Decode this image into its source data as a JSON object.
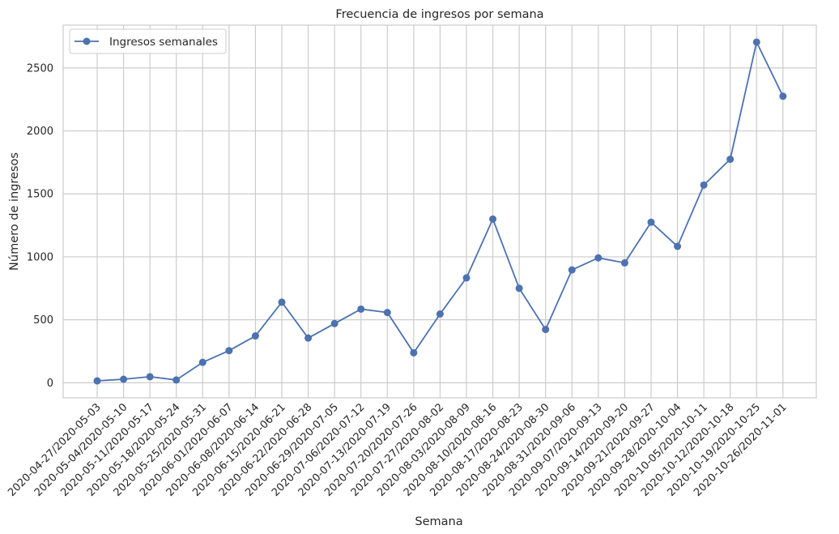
{
  "chart_data": {
    "type": "line",
    "title": "Frecuencia de ingresos por semana",
    "xlabel": "Semana",
    "ylabel": "Número de ingresos",
    "ylim": [
      -120,
      2840
    ],
    "yticks": [
      0,
      500,
      1000,
      1500,
      2000,
      2500
    ],
    "grid": true,
    "legend_position": "top-left",
    "categories": [
      "2020-04-27/2020-05-03",
      "2020-05-04/2020-05-10",
      "2020-05-11/2020-05-17",
      "2020-05-18/2020-05-24",
      "2020-05-25/2020-05-31",
      "2020-06-01/2020-06-07",
      "2020-06-08/2020-06-14",
      "2020-06-15/2020-06-21",
      "2020-06-22/2020-06-28",
      "2020-06-29/2020-07-05",
      "2020-07-06/2020-07-12",
      "2020-07-13/2020-07-19",
      "2020-07-20/2020-07-26",
      "2020-07-27/2020-08-02",
      "2020-08-03/2020-08-09",
      "2020-08-10/2020-08-16",
      "2020-08-17/2020-08-23",
      "2020-08-24/2020-08-30",
      "2020-08-31/2020-09-06",
      "2020-09-07/2020-09-13",
      "2020-09-14/2020-09-20",
      "2020-09-21/2020-09-27",
      "2020-09-28/2020-10-04",
      "2020-10-05/2020-10-11",
      "2020-10-12/2020-10-18",
      "2020-10-19/2020-10-25",
      "2020-10-26/2020-11-01"
    ],
    "series": [
      {
        "name": "Ingresos semanales",
        "color": "#4c72b0",
        "marker": "circle",
        "values": [
          15,
          28,
          48,
          22,
          162,
          255,
          372,
          640,
          355,
          470,
          585,
          558,
          238,
          546,
          833,
          1300,
          750,
          423,
          896,
          992,
          952,
          1275,
          1083,
          1570,
          1775,
          2705,
          2275
        ]
      }
    ]
  }
}
